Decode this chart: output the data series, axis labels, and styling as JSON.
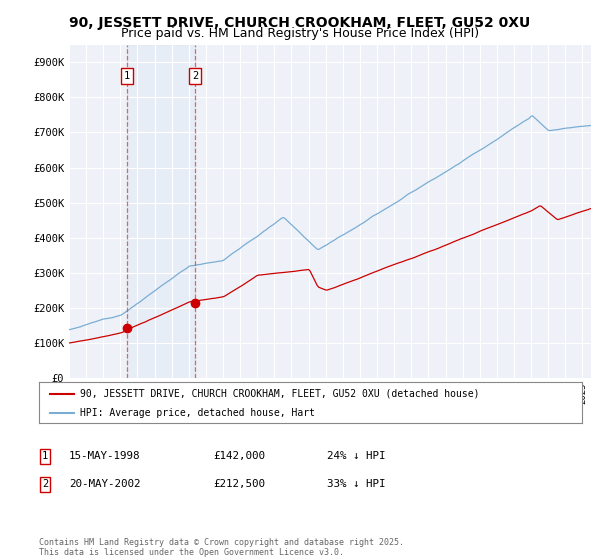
{
  "title": "90, JESSETT DRIVE, CHURCH CROOKHAM, FLEET, GU52 0XU",
  "subtitle": "Price paid vs. HM Land Registry's House Price Index (HPI)",
  "ylim": [
    0,
    950000
  ],
  "yticks": [
    0,
    100000,
    200000,
    300000,
    400000,
    500000,
    600000,
    700000,
    800000,
    900000
  ],
  "ytick_labels": [
    "£0",
    "£100K",
    "£200K",
    "£300K",
    "£400K",
    "£500K",
    "£600K",
    "£700K",
    "£800K",
    "£900K"
  ],
  "hpi_color": "#7aadd4",
  "price_color": "#cc0000",
  "background_color": "#ffffff",
  "plot_bg_color": "#eef2f8",
  "grid_color": "#ffffff",
  "purchase1_date": 1998.37,
  "purchase1_price": 142000,
  "purchase1_label": "1",
  "purchase2_date": 2002.38,
  "purchase2_price": 212500,
  "purchase2_label": "2",
  "legend_entry1": "90, JESSETT DRIVE, CHURCH CROOKHAM, FLEET, GU52 0XU (detached house)",
  "legend_entry2": "HPI: Average price, detached house, Hart",
  "table_row1": [
    "1",
    "15-MAY-1998",
    "£142,000",
    "24% ↓ HPI"
  ],
  "table_row2": [
    "2",
    "20-MAY-2002",
    "£212,500",
    "33% ↓ HPI"
  ],
  "footer": "Contains HM Land Registry data © Crown copyright and database right 2025.\nThis data is licensed under the Open Government Licence v3.0.",
  "title_fontsize": 10,
  "subtitle_fontsize": 9
}
